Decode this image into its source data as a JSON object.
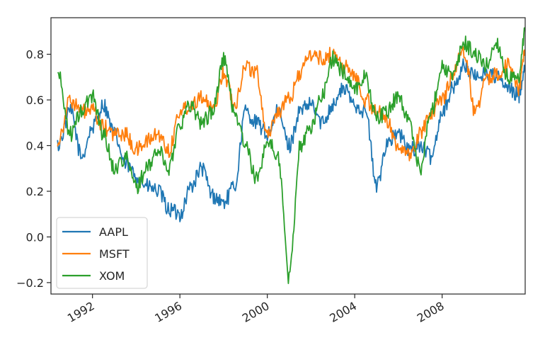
{
  "chart_data": {
    "type": "line",
    "title": "",
    "xlabel": "",
    "ylabel": "",
    "xlim": [
      1990.1,
      2011.8
    ],
    "ylim": [
      -0.25,
      0.96
    ],
    "grid": false,
    "legend_position": "lower-left",
    "x_ticks": [
      1992,
      1996,
      2000,
      2004,
      2008
    ],
    "x_tick_labels": [
      "1992",
      "1996",
      "2000",
      "2004",
      "2008"
    ],
    "y_ticks": [
      -0.2,
      0.0,
      0.2,
      0.4,
      0.6,
      0.8
    ],
    "y_tick_labels": [
      "−0.2",
      "0.0",
      "0.2",
      "0.4",
      "0.6",
      "0.8"
    ],
    "x": [
      1990.4,
      1991.0,
      1991.5,
      1992.0,
      1992.5,
      1993.0,
      1993.5,
      1994.0,
      1994.5,
      1995.0,
      1995.5,
      1996.0,
      1996.5,
      1997.0,
      1997.5,
      1998.0,
      1998.5,
      1999.0,
      1999.5,
      2000.0,
      2000.5,
      2001.0,
      2001.5,
      2002.0,
      2002.5,
      2003.0,
      2003.5,
      2004.0,
      2004.5,
      2005.0,
      2005.5,
      2006.0,
      2006.5,
      2007.0,
      2007.5,
      2008.0,
      2008.5,
      2009.0,
      2009.5,
      2010.0,
      2010.5,
      2011.0,
      2011.5,
      2011.8
    ],
    "series": [
      {
        "name": "AAPL",
        "color": "#1f77b4",
        "values": [
          0.4,
          0.55,
          0.35,
          0.48,
          0.58,
          0.45,
          0.32,
          0.27,
          0.22,
          0.2,
          0.12,
          0.1,
          0.22,
          0.3,
          0.18,
          0.15,
          0.22,
          0.55,
          0.5,
          0.45,
          0.55,
          0.4,
          0.55,
          0.58,
          0.5,
          0.58,
          0.65,
          0.58,
          0.55,
          0.22,
          0.42,
          0.45,
          0.38,
          0.4,
          0.35,
          0.55,
          0.65,
          0.75,
          0.7,
          0.72,
          0.7,
          0.65,
          0.62,
          0.75
        ]
      },
      {
        "name": "MSFT",
        "color": "#ff7f0e",
        "values": [
          0.42,
          0.6,
          0.55,
          0.55,
          0.48,
          0.45,
          0.45,
          0.38,
          0.42,
          0.45,
          0.38,
          0.55,
          0.58,
          0.62,
          0.55,
          0.72,
          0.58,
          0.75,
          0.72,
          0.45,
          0.55,
          0.6,
          0.72,
          0.8,
          0.78,
          0.8,
          0.75,
          0.7,
          0.6,
          0.55,
          0.5,
          0.4,
          0.35,
          0.45,
          0.55,
          0.6,
          0.72,
          0.82,
          0.55,
          0.68,
          0.72,
          0.75,
          0.65,
          0.82
        ]
      },
      {
        "name": "XOM",
        "color": "#2ca02c",
        "values": [
          0.72,
          0.45,
          0.55,
          0.62,
          0.45,
          0.3,
          0.35,
          0.22,
          0.3,
          0.38,
          0.3,
          0.5,
          0.58,
          0.5,
          0.55,
          0.78,
          0.55,
          0.4,
          0.25,
          0.42,
          0.35,
          -0.18,
          0.4,
          0.48,
          0.62,
          0.78,
          0.72,
          0.65,
          0.7,
          0.52,
          0.55,
          0.62,
          0.5,
          0.3,
          0.55,
          0.75,
          0.7,
          0.85,
          0.8,
          0.75,
          0.85,
          0.7,
          0.68,
          0.9
        ]
      }
    ]
  }
}
